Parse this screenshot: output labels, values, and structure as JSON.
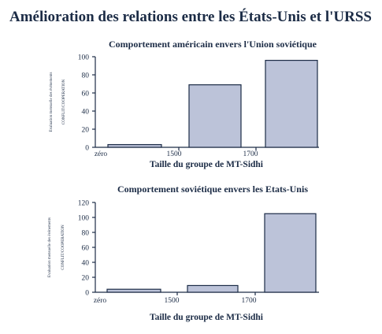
{
  "title": "Amélioration des relations entre les États-Unis et l'URSS",
  "chart_data": [
    {
      "type": "bar",
      "title": "Comportement américain envers l'Union soviétique",
      "xlabel": "Taille du groupe de MT-Sidhi",
      "ylabel": [
        "Evaluation mensuelle des événements",
        "CONFLIT/COOPERATION"
      ],
      "categories": [
        "zéro",
        "1500",
        "1700"
      ],
      "values": [
        3,
        69,
        96
      ],
      "yticks": [
        0,
        20,
        40,
        60,
        80,
        100
      ],
      "ylim": [
        0,
        100
      ],
      "grid": false,
      "legend": "none",
      "colors": {
        "bar": "#bcc3d9",
        "ink": "#1c2c46"
      }
    },
    {
      "type": "bar",
      "title": "Comportement soviétique envers les Etats-Unis",
      "xlabel": "Taille du groupe de MT-Sidhi",
      "ylabel": [
        "Evaluation mensuelle des événements",
        "CONFLIT/COOPERATION"
      ],
      "categories": [
        "zéro",
        "1500",
        "1700"
      ],
      "values": [
        4,
        9,
        105
      ],
      "yticks": [
        0,
        20,
        40,
        60,
        80,
        100,
        120
      ],
      "ylim": [
        0,
        120
      ],
      "grid": false,
      "legend": "none",
      "colors": {
        "bar": "#bcc3d9",
        "ink": "#1c2c46"
      }
    }
  ]
}
